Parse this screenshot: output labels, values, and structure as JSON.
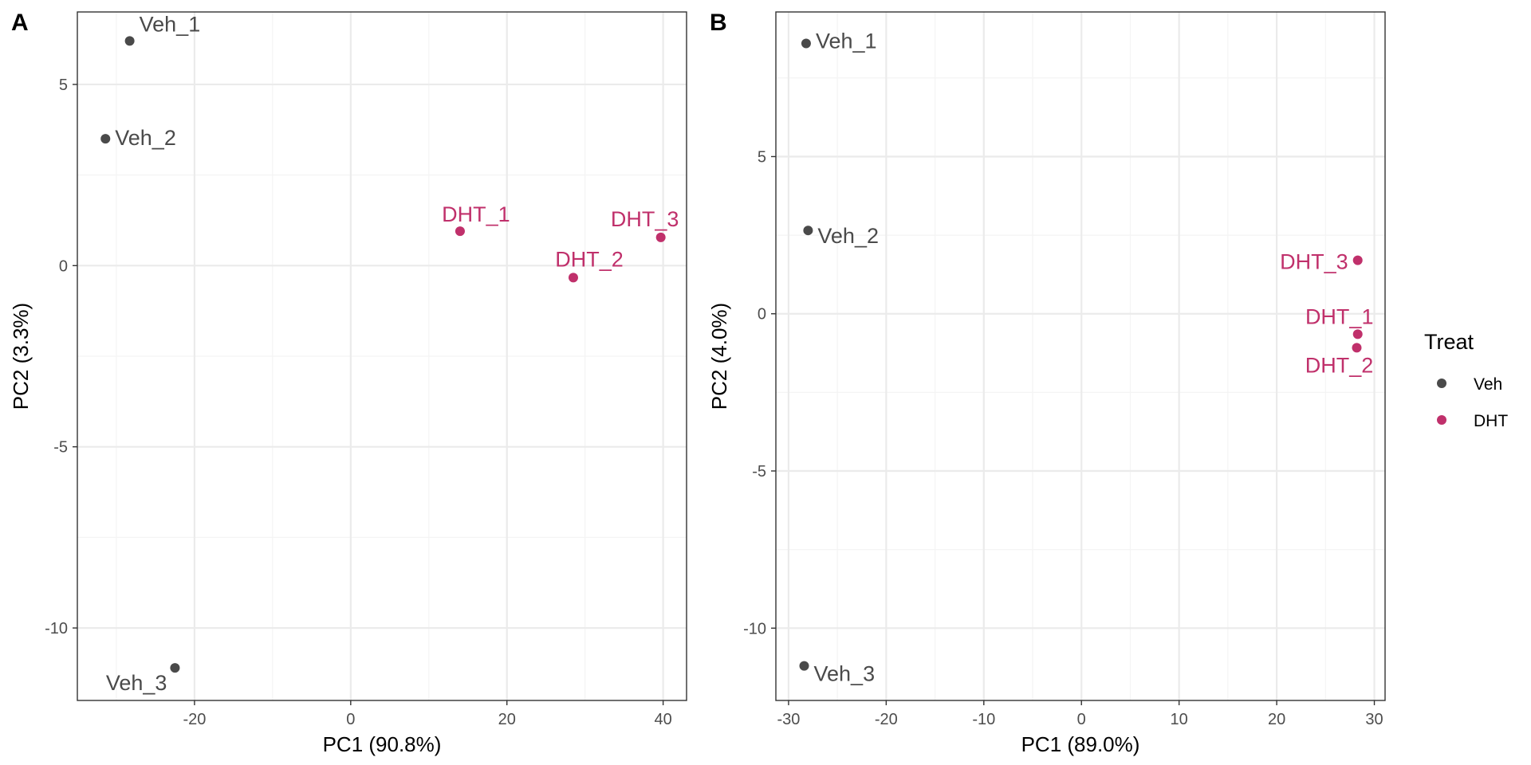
{
  "colors": {
    "Veh": "#4a4a4a",
    "DHT": "#c0306b",
    "grid_major": "#ebebeb",
    "grid_minor": "#f4f4f4",
    "border": "#333333"
  },
  "legend": {
    "title": "Treat",
    "entries": [
      {
        "label": "Veh",
        "color": "#4a4a4a"
      },
      {
        "label": "DHT",
        "color": "#c0306b"
      }
    ]
  },
  "chart_data": [
    {
      "type": "scatter",
      "panel_label": "A",
      "xlabel": "PC1 (90.8%)",
      "ylabel": "PC2 (3.3%)",
      "xlim": [
        -35,
        43
      ],
      "ylim": [
        -12,
        7
      ],
      "xticks": [
        -20,
        0,
        20,
        40
      ],
      "xtick_labels": [
        "-20",
        "0",
        "20",
        "40"
      ],
      "yticks": [
        -10,
        -5,
        0,
        5
      ],
      "ytick_labels": [
        "-10",
        "-5",
        "0",
        "5"
      ],
      "grid": true,
      "points": [
        {
          "label": "Veh_1",
          "group": "Veh",
          "x": -28.3,
          "y": 6.2
        },
        {
          "label": "Veh_2",
          "group": "Veh",
          "x": -31.4,
          "y": 3.5
        },
        {
          "label": "Veh_3",
          "group": "Veh",
          "x": -22.5,
          "y": -11.1
        },
        {
          "label": "DHT_1",
          "group": "DHT",
          "x": 14.0,
          "y": 0.95
        },
        {
          "label": "DHT_2",
          "group": "DHT",
          "x": 28.5,
          "y": -0.33
        },
        {
          "label": "DHT_3",
          "group": "DHT",
          "x": 39.7,
          "y": 0.78
        }
      ]
    },
    {
      "type": "scatter",
      "panel_label": "B",
      "xlabel": "PC1 (89.0%)",
      "ylabel": "PC2 (4.0%)",
      "xlim": [
        -31.3,
        31.1
      ],
      "ylim": [
        -12.3,
        9.6
      ],
      "xticks": [
        -30,
        -20,
        -10,
        0,
        10,
        20,
        30
      ],
      "xtick_labels": [
        "-30",
        "-20",
        "-10",
        "0",
        "10",
        "20",
        "30"
      ],
      "yticks": [
        -10,
        -5,
        0,
        5
      ],
      "ytick_labels": [
        "-10",
        "-5",
        "0",
        "5"
      ],
      "grid": true,
      "points": [
        {
          "label": "Veh_1",
          "group": "Veh",
          "x": -28.2,
          "y": 8.6
        },
        {
          "label": "Veh_2",
          "group": "Veh",
          "x": -28.0,
          "y": 2.65
        },
        {
          "label": "Veh_3",
          "group": "Veh",
          "x": -28.4,
          "y": -11.2
        },
        {
          "label": "DHT_1",
          "group": "DHT",
          "x": 28.3,
          "y": -0.65
        },
        {
          "label": "DHT_2",
          "group": "DHT",
          "x": 28.2,
          "y": -1.08
        },
        {
          "label": "DHT_3",
          "group": "DHT",
          "x": 28.3,
          "y": 1.7
        }
      ]
    }
  ]
}
